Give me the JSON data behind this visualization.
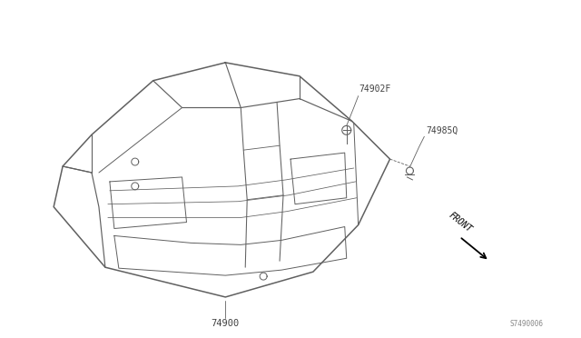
{
  "bg_color": "#ffffff",
  "line_color": "#606060",
  "text_color": "#404040",
  "part_74900_label": "74900",
  "part_74902F_label": "74902F",
  "part_74985Q_label": "74985Q",
  "front_label": "FRONT",
  "diagram_id": "S7490006"
}
